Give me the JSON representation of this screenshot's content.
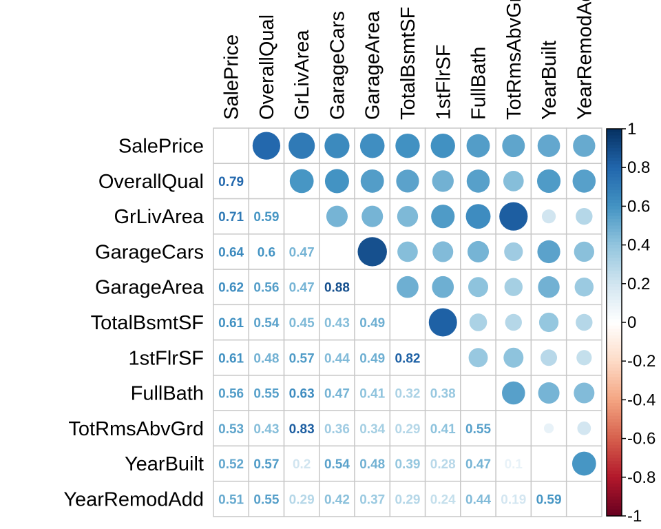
{
  "chart_data": {
    "type": "heatmap",
    "style": "corrplot-mixed",
    "upper": "circle",
    "lower": "number",
    "diagonal": "blank",
    "variables": [
      "SalePrice",
      "OverallQual",
      "GrLivArea",
      "GarageCars",
      "GarageArea",
      "TotalBsmtSF",
      "1stFlrSF",
      "FullBath",
      "TotRmsAbvGrd",
      "YearBuilt",
      "YearRemodAdd"
    ],
    "matrix": [
      [
        1,
        0.79,
        0.71,
        0.64,
        0.62,
        0.61,
        0.61,
        0.56,
        0.53,
        0.52,
        0.51
      ],
      [
        0.79,
        1,
        0.59,
        0.6,
        0.56,
        0.54,
        0.48,
        0.55,
        0.43,
        0.57,
        0.55
      ],
      [
        0.71,
        0.59,
        1,
        0.47,
        0.47,
        0.45,
        0.57,
        0.63,
        0.83,
        0.2,
        0.29
      ],
      [
        0.64,
        0.6,
        0.47,
        1,
        0.88,
        0.43,
        0.44,
        0.47,
        0.36,
        0.54,
        0.42
      ],
      [
        0.62,
        0.56,
        0.47,
        0.88,
        1,
        0.49,
        0.49,
        0.41,
        0.34,
        0.48,
        0.37
      ],
      [
        0.61,
        0.54,
        0.45,
        0.43,
        0.49,
        1,
        0.82,
        0.32,
        0.29,
        0.39,
        0.29
      ],
      [
        0.61,
        0.48,
        0.57,
        0.44,
        0.49,
        0.82,
        1,
        0.38,
        0.41,
        0.28,
        0.24
      ],
      [
        0.56,
        0.55,
        0.63,
        0.47,
        0.41,
        0.32,
        0.38,
        1,
        0.55,
        0.47,
        0.44
      ],
      [
        0.53,
        0.43,
        0.83,
        0.36,
        0.34,
        0.29,
        0.41,
        0.55,
        1,
        0.1,
        0.19
      ],
      [
        0.52,
        0.57,
        0.2,
        0.54,
        0.48,
        0.39,
        0.28,
        0.47,
        0.1,
        1,
        0.59
      ],
      [
        0.51,
        0.55,
        0.29,
        0.42,
        0.37,
        0.29,
        0.24,
        0.44,
        0.19,
        0.59,
        1
      ]
    ],
    "colorbar": {
      "ticks": [
        "1",
        "0.8",
        "0.6",
        "0.4",
        "0.2",
        "0",
        "-0.2",
        "-0.4",
        "-0.6",
        "-0.8",
        "-1"
      ],
      "range": [
        -1,
        1
      ]
    },
    "colors": [
      "#67001F",
      "#B2182B",
      "#D6604D",
      "#F4A582",
      "#FDDBC7",
      "#FFFFFF",
      "#D1E5F0",
      "#92C5DE",
      "#4393C3",
      "#2166AC",
      "#053061"
    ]
  }
}
